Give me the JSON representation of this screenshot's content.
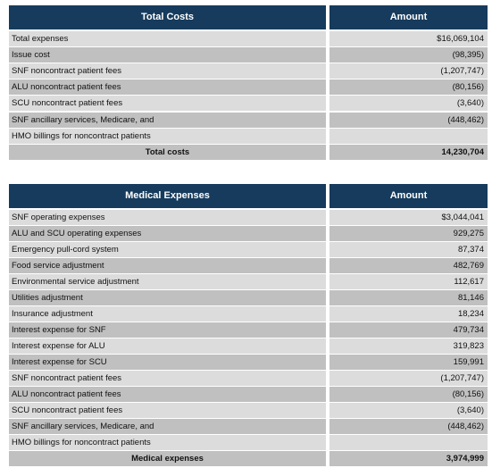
{
  "tables": [
    {
      "header": [
        "Total Costs",
        "Amount"
      ],
      "rows": [
        {
          "label": "Total expenses",
          "amount": "$16,069,104"
        },
        {
          "label": "Issue cost",
          "amount": "(98,395)"
        },
        {
          "label": "SNF noncontract patient fees",
          "amount": "(1,207,747)"
        },
        {
          "label": "ALU noncontract patient fees",
          "amount": "(80,156)"
        },
        {
          "label": "SCU noncontract patient fees",
          "amount": "(3,640)"
        },
        {
          "label": "SNF ancillary services, Medicare, and",
          "amount": "(448,462)"
        },
        {
          "label": "HMO billings for noncontract patients"
        }
      ],
      "total": {
        "label": "Total costs",
        "amount": "14,230,704"
      }
    },
    {
      "header": [
        "Medical Expenses",
        "Amount"
      ],
      "rows": [
        {
          "label": "SNF operating expenses",
          "amount": "$3,044,041"
        },
        {
          "label": "ALU and SCU operating expenses",
          "amount": "929,275"
        },
        {
          "label": "Emergency pull-cord system",
          "amount": "87,374"
        },
        {
          "label": "Food service adjustment",
          "amount": "482,769"
        },
        {
          "label": "Environmental service adjustment",
          "amount": "112,617"
        },
        {
          "label": "Utilities adjustment",
          "amount": "81,146"
        },
        {
          "label": "Insurance adjustment",
          "amount": "18,234"
        },
        {
          "label": "Interest expense for SNF",
          "amount": "479,734"
        },
        {
          "label": "Interest expense for ALU",
          "amount": "319,823"
        },
        {
          "label": "Interest expense for SCU",
          "amount": "159,991"
        },
        {
          "label": "SNF noncontract patient fees",
          "amount": "(1,207,747)"
        },
        {
          "label": "ALU noncontract patient fees",
          "amount": "(80,156)"
        },
        {
          "label": "SCU noncontract patient fees",
          "amount": "(3,640)"
        },
        {
          "label": "SNF ancillary services, Medicare, and",
          "amount": "(448,462)"
        },
        {
          "label": "HMO billings for noncontract patients"
        }
      ],
      "total": {
        "label": "Medical expenses",
        "amount": "3,974,999"
      }
    }
  ]
}
